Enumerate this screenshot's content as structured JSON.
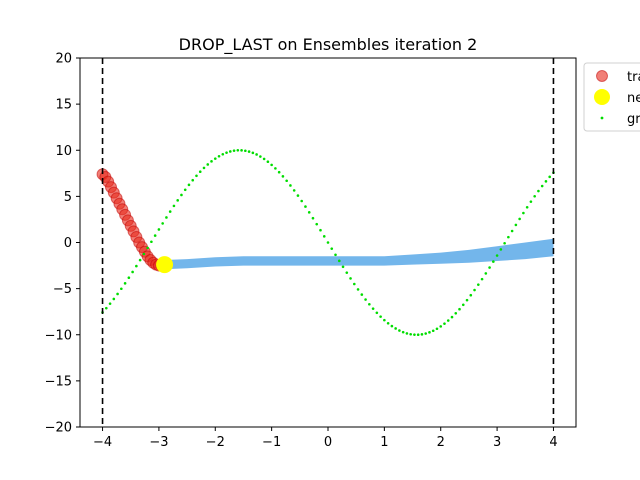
{
  "chart_data": {
    "type": "scatter",
    "title": "DROP_LAST on Ensembles iteration 2",
    "xlabel": "",
    "ylabel": "",
    "xlim": [
      -4.4,
      4.4
    ],
    "ylim": [
      -20,
      20
    ],
    "x_ticks": [
      -4,
      -3,
      -2,
      -1,
      0,
      1,
      2,
      3,
      4
    ],
    "x_tick_labels": [
      "−4",
      "−3",
      "−2",
      "−1",
      "0",
      "1",
      "2",
      "3",
      "4"
    ],
    "y_ticks": [
      -20,
      -15,
      -10,
      -5,
      0,
      5,
      10,
      15,
      20
    ],
    "y_tick_labels": [
      "−20",
      "−15",
      "−10",
      "−5",
      "0",
      "5",
      "10",
      "15",
      "20"
    ],
    "grid": false,
    "legend_placement": "outside upper right",
    "vlines": [
      -4,
      4
    ],
    "series": [
      {
        "name": "tra",
        "kind": "points",
        "color": "#e8291c",
        "x": [
          -4.0,
          -3.95,
          -3.9,
          -3.85,
          -3.8,
          -3.75,
          -3.7,
          -3.65,
          -3.6,
          -3.55,
          -3.5,
          -3.45,
          -3.4,
          -3.35,
          -3.3,
          -3.25,
          -3.2,
          -3.15,
          -3.1,
          -3.05,
          -3.0,
          -2.95,
          -2.9
        ],
        "y": [
          7.4,
          7.1,
          6.6,
          6.0,
          5.4,
          4.8,
          4.2,
          3.6,
          3.0,
          2.4,
          1.8,
          1.2,
          0.6,
          0.0,
          -0.5,
          -1.0,
          -1.5,
          -1.9,
          -2.2,
          -2.4,
          -2.5,
          -2.5,
          -2.4
        ]
      },
      {
        "name": "ne",
        "kind": "point",
        "color": "#ffff00",
        "x": [
          -2.9
        ],
        "y": [
          -2.4
        ]
      },
      {
        "name": "gr",
        "kind": "dotted",
        "color": "#00dd00",
        "function": "-10*sin(x)",
        "x_start": -4,
        "x_end": 4,
        "samples": 120
      },
      {
        "name": "",
        "kind": "band",
        "color": "#5aa9e8",
        "x": [
          -2.9,
          -2.5,
          -2.0,
          -1.5,
          -1.0,
          -0.5,
          0.0,
          0.5,
          1.0,
          1.5,
          2.0,
          2.5,
          3.0,
          3.5,
          4.0
        ],
        "y_low": [
          -2.9,
          -2.8,
          -2.6,
          -2.5,
          -2.5,
          -2.5,
          -2.5,
          -2.5,
          -2.5,
          -2.4,
          -2.3,
          -2.2,
          -2.0,
          -1.8,
          -1.5
        ],
        "y_high": [
          -1.9,
          -1.8,
          -1.6,
          -1.5,
          -1.5,
          -1.5,
          -1.5,
          -1.5,
          -1.5,
          -1.3,
          -1.1,
          -0.8,
          -0.4,
          0.0,
          0.4
        ]
      }
    ]
  }
}
